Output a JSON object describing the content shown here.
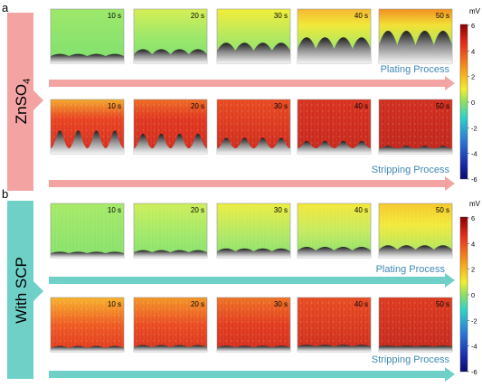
{
  "panel_a": {
    "letter": "a",
    "side_label": "ZnSO4",
    "side_label_main": "ZnSO",
    "side_label_sub": "4",
    "plating_label": "Plating Process",
    "stripping_label": "Stripping Process"
  },
  "panel_b": {
    "letter": "b",
    "side_label": "With SCP",
    "plating_label": "Plating Process",
    "stripping_label": "Stripping Process"
  },
  "time_labels": [
    "10 s",
    "20 s",
    "30 s",
    "40 s",
    "50 s"
  ],
  "colorbar": {
    "unit": "mV",
    "ticks": [
      "6",
      "4",
      "2",
      "0",
      "-2",
      "-4",
      "-6"
    ]
  },
  "colors": {
    "znso4_band": "#f4a3a3",
    "scp_band": "#6fd0c8",
    "plating_arrow_a": "#f4a3a3",
    "stripping_arrow_a": "#f4a3a3",
    "arrow_b": "#6fd0c8",
    "process_text": "#3f88b5"
  }
}
